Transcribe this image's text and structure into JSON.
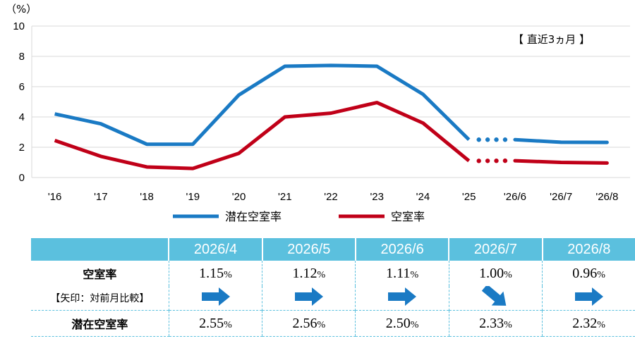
{
  "chart_data": {
    "type": "line",
    "unit_label": "（%）",
    "note": "【 直近3ヵ月 】",
    "categories": [
      "'16",
      "'17",
      "'18",
      "'19",
      "'20",
      "'21",
      "'22",
      "'23",
      "'24",
      "'25",
      "'26/6",
      "'26/7",
      "'26/8"
    ],
    "ylim": [
      0,
      10
    ],
    "yticks": [
      0,
      2,
      4,
      6,
      8,
      10
    ],
    "grid": true,
    "legend_position": "bottom",
    "series": [
      {
        "name": "潜在空室率",
        "color": "#1a7ac4",
        "values": [
          4.2,
          3.55,
          2.2,
          2.2,
          5.45,
          7.35,
          7.4,
          7.35,
          5.5,
          2.5,
          2.5,
          2.33,
          2.32
        ]
      },
      {
        "name": "空室率",
        "color": "#c00018",
        "values": [
          2.45,
          1.4,
          0.7,
          0.6,
          1.6,
          4.0,
          4.25,
          4.95,
          3.6,
          1.1,
          1.11,
          1.0,
          0.96
        ]
      }
    ],
    "dotted_between": [
      9,
      10
    ]
  },
  "table": {
    "headers": [
      "2026/4",
      "2026/5",
      "2026/6",
      "2026/7",
      "2026/8"
    ],
    "row1_label": "空室率",
    "row2_label": "【矢印：対前月比較】",
    "row3_label": "潜在空室率",
    "vacancy": [
      "1.15",
      "1.12",
      "1.11",
      "1.00",
      "0.96"
    ],
    "potential": [
      "2.55",
      "2.56",
      "2.50",
      "2.33",
      "2.32"
    ],
    "pct_sign": "%",
    "arrows": [
      "flat",
      "flat",
      "flat",
      "down",
      "flat"
    ],
    "arrow_color": "#1a7ac4"
  }
}
